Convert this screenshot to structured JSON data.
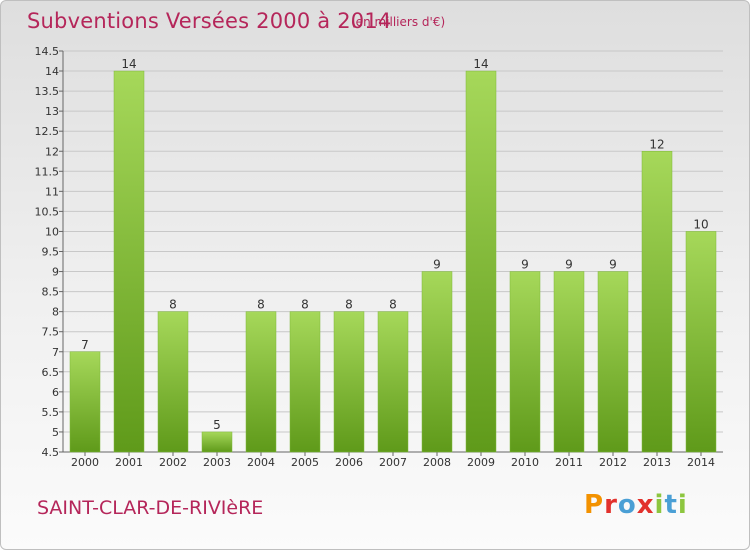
{
  "header": {
    "title": "Subventions Versées 2000 à 2014",
    "subtitle": "(en milliers d'€)"
  },
  "footer": {
    "commune": "SAINT-CLAR-DE-RIVIèRE",
    "logo_text": "Proxiti",
    "logo_colors": [
      "#f39200",
      "#e2312c",
      "#4a9fd5",
      "#e2312c",
      "#8dc63f",
      "#4a9fd5",
      "#8dc63f"
    ]
  },
  "colors": {
    "bar_top": "#a6d85a",
    "bar_bottom": "#5f9a1a",
    "text_accent": "#b5265a",
    "grid": "#c8c8c8"
  },
  "chart_data": {
    "type": "bar",
    "title": "Subventions Versées 2000 à 2014",
    "subtitle": "(en milliers d'€)",
    "categories": [
      "2000",
      "2001",
      "2002",
      "2003",
      "2004",
      "2005",
      "2006",
      "2007",
      "2008",
      "2009",
      "2010",
      "2011",
      "2012",
      "2013",
      "2014"
    ],
    "values": [
      7,
      14,
      8,
      5,
      8,
      8,
      8,
      8,
      9,
      14,
      9,
      9,
      9,
      12,
      10
    ],
    "ylim": [
      4.5,
      14.5
    ],
    "yticks": [
      "4.5",
      "5",
      "5.5",
      "6",
      "6.5",
      "7",
      "7.5",
      "8",
      "8.5",
      "9",
      "9.5",
      "10",
      "10.5",
      "11",
      "11.5",
      "12",
      "12.5",
      "13",
      "13.5",
      "14",
      "14.5"
    ],
    "grid": true,
    "data_labels": true
  }
}
